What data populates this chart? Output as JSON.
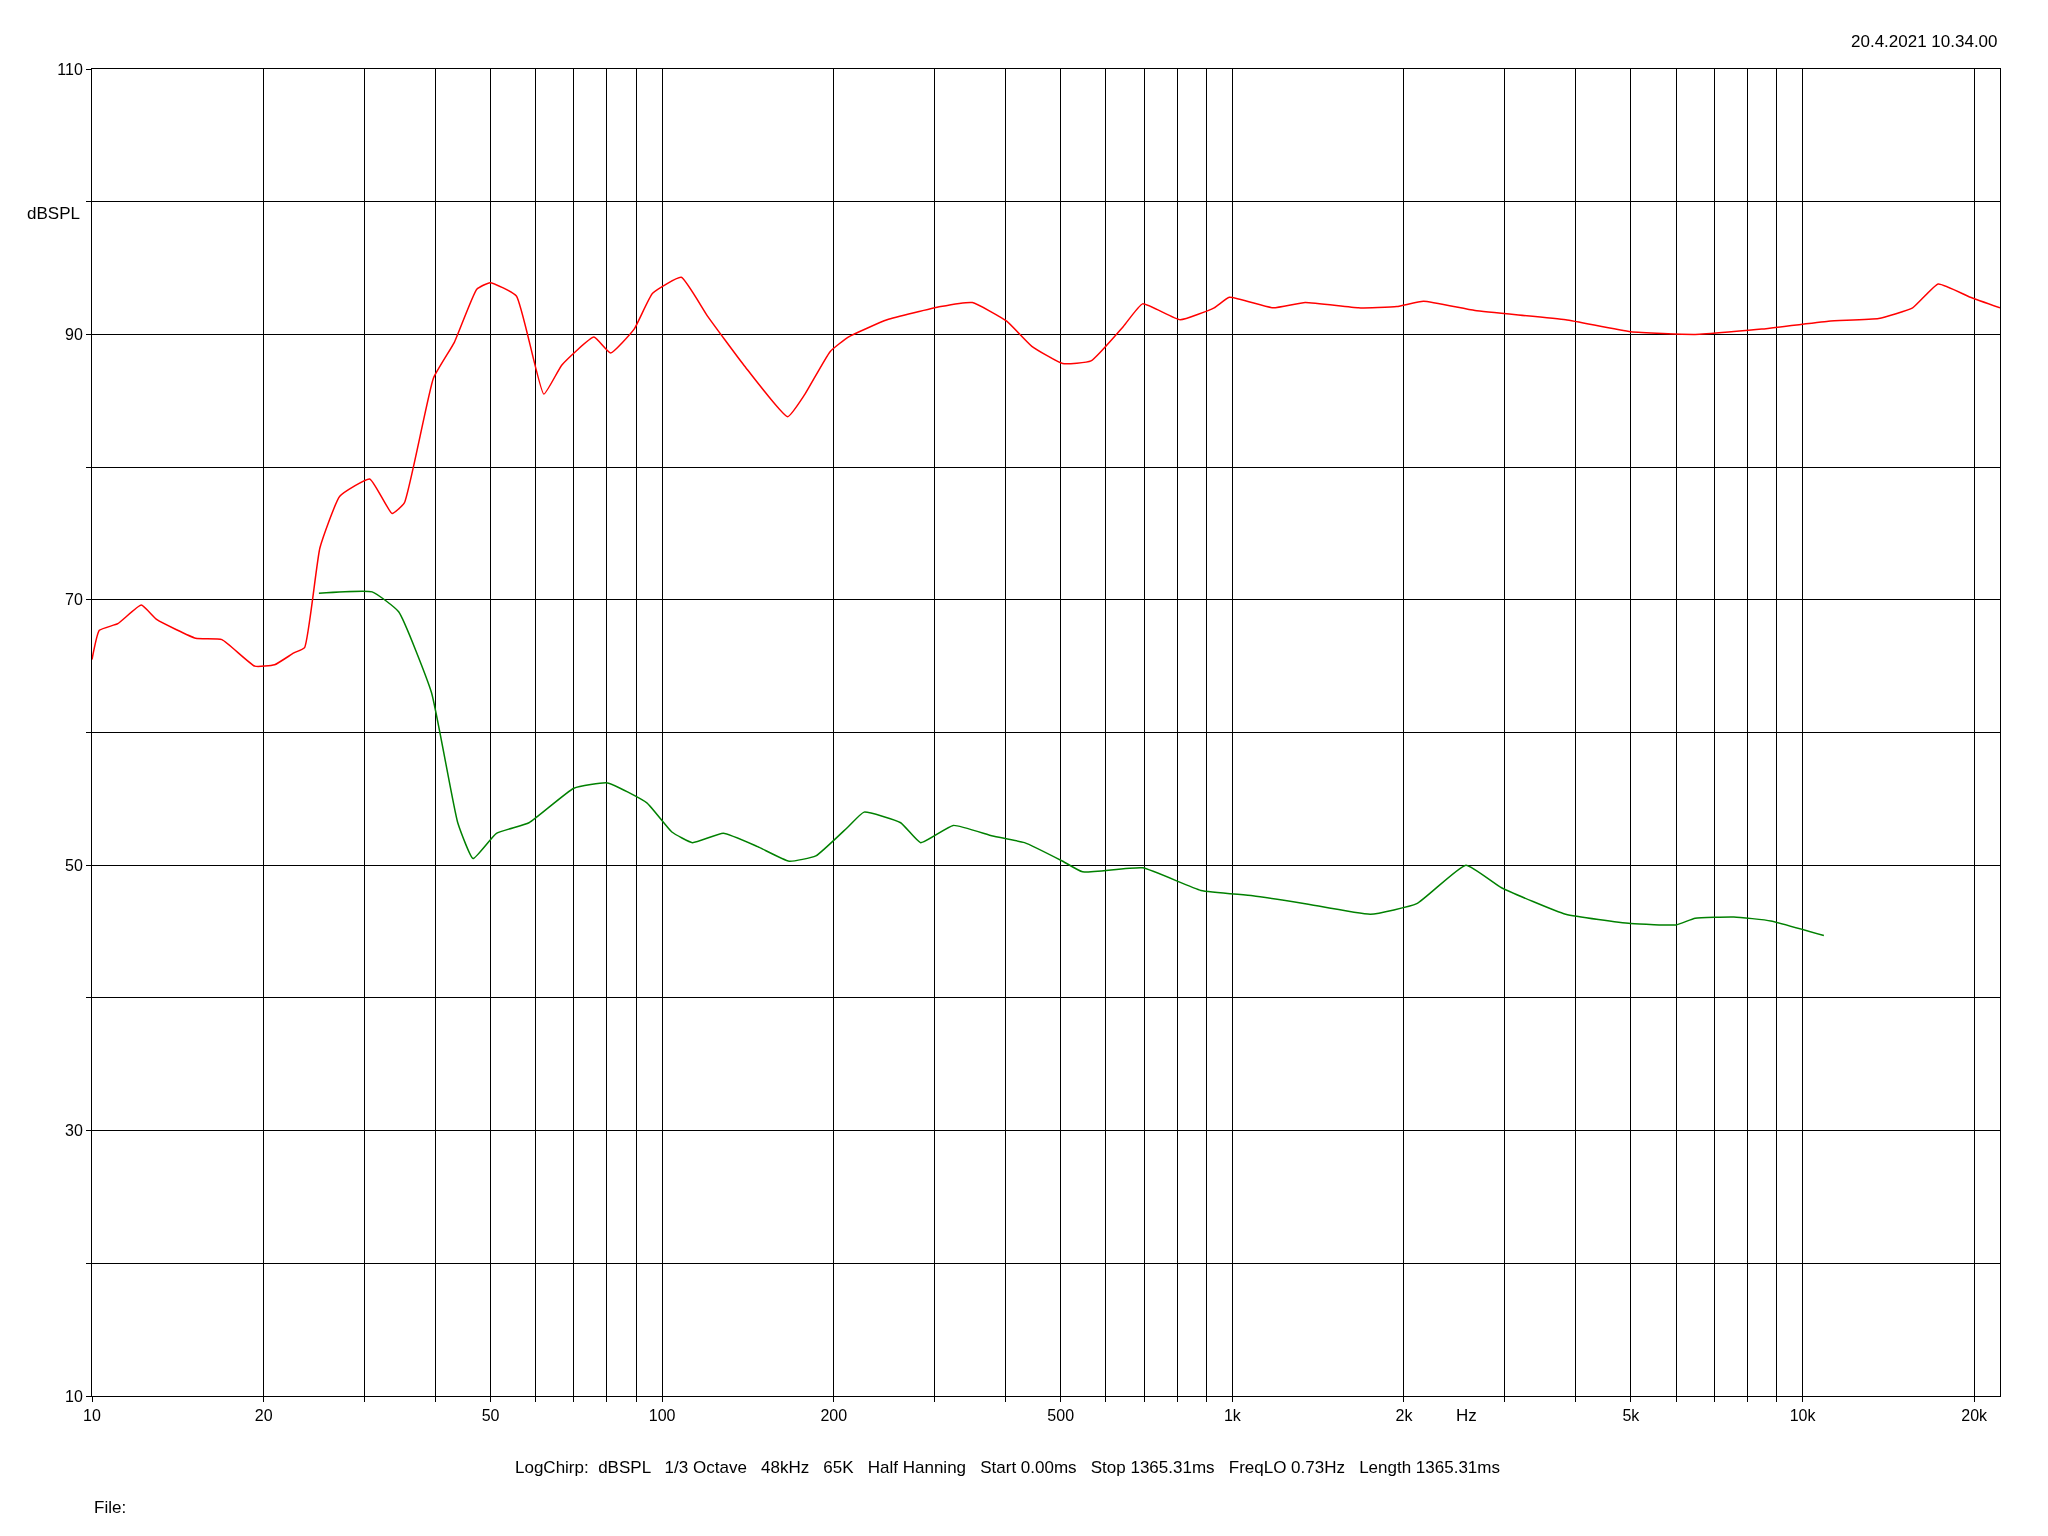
{
  "chart_data": {
    "type": "line",
    "xlabel": "Hz",
    "ylabel": "dBSPL",
    "log": "x",
    "grid": true,
    "marker": "none",
    "line_style": "solid",
    "xlim": [
      10,
      22200
    ],
    "ylim": [
      10,
      110
    ],
    "xticks": [
      10,
      20,
      {
        "value": 30,
        "label": null
      },
      {
        "value": 40,
        "label": null
      },
      50,
      {
        "value": 60,
        "label": null
      },
      {
        "value": 70,
        "label": null
      },
      {
        "value": 80,
        "label": null
      },
      {
        "value": 90,
        "label": null
      },
      100,
      200,
      {
        "value": 300,
        "label": null
      },
      {
        "value": 400,
        "label": null
      },
      500,
      {
        "value": 600,
        "label": null
      },
      {
        "value": 700,
        "label": null
      },
      {
        "value": 800,
        "label": null
      },
      {
        "value": 900,
        "label": null
      },
      {
        "value": 1000,
        "label": "1k"
      },
      {
        "value": 2000,
        "label": "2k"
      },
      {
        "value": 3000,
        "label": null
      },
      {
        "value": 4000,
        "label": null
      },
      {
        "value": 5000,
        "label": "5k"
      },
      {
        "value": 6000,
        "label": null
      },
      {
        "value": 7000,
        "label": null
      },
      {
        "value": 8000,
        "label": null
      },
      {
        "value": 9000,
        "label": null
      },
      {
        "value": 10000,
        "label": "10k"
      },
      {
        "value": 20000,
        "label": "20k"
      }
    ],
    "yticks": [
      10,
      {
        "value": 20,
        "label": null
      },
      30,
      {
        "value": 40,
        "label": null
      },
      50,
      {
        "value": 60,
        "label": null
      },
      70,
      {
        "value": 80,
        "label": null
      },
      90,
      {
        "value": 100,
        "label": null
      },
      110
    ],
    "annotations": [
      "20.4.2021 10.34.00",
      "LogChirp:  dBSPL   1/3 Octave   48kHz   65K   Half Hanning   Start 0.00ms   Stop 1365.31ms   FreqLO 0.73Hz   Length 1365.31ms",
      "File:"
    ],
    "series": [
      {
        "color": "#ff0000",
        "x": [
          10,
          10.3,
          11.1,
          12.2,
          13.0,
          15.2,
          16.9,
          19.3,
          20.9,
          22.6,
          23.6,
          25.1,
          27.2,
          30.7,
          33.6,
          35.3,
          39.7,
          43.2,
          47.3,
          49.9,
          55.5,
          62.0,
          66.7,
          75.9,
          81.2,
          89.3,
          96.2,
          108,
          120,
          139,
          166,
          178,
          197,
          212,
          248,
          308,
          350,
          402,
          445,
          504,
          565,
          644,
          696,
          810,
          929,
          988,
          1179,
          1342,
          1664,
          1943,
          2164,
          2665,
          3843,
          4996,
          6482,
          8485,
          11100,
          13600,
          15600,
          17300,
          19700,
          22200
        ],
        "values": [
          65.5,
          67.7,
          68.2,
          69.6,
          68.5,
          67.1,
          67.0,
          65.0,
          65.1,
          66.0,
          66.4,
          73.9,
          77.8,
          79.1,
          76.5,
          77.3,
          86.7,
          89.4,
          93.4,
          93.9,
          92.9,
          85.5,
          87.7,
          89.8,
          88.6,
          90.4,
          93.1,
          94.3,
          91.4,
          87.7,
          83.8,
          85.5,
          88.7,
          89.8,
          91.1,
          92.1,
          92.4,
          91.0,
          89.1,
          87.8,
          88.0,
          90.6,
          92.3,
          91.1,
          92.0,
          92.8,
          92.0,
          92.4,
          92.0,
          92.1,
          92.5,
          91.8,
          91.1,
          90.2,
          90.0,
          90.4,
          91.0,
          91.2,
          92.0,
          93.8,
          92.8,
          92.0
        ]
      },
      {
        "color": "#008000",
        "x": [
          25,
          31,
          34.5,
          39.4,
          43.8,
          46.6,
          51.2,
          58.4,
          70,
          80.2,
          94.0,
          104,
          113,
          128,
          147,
          167,
          186,
          212,
          226,
          262,
          284,
          324,
          380,
          432,
          504,
          546,
          696,
          881,
          1086,
          1342,
          1747,
          2106,
          2568,
          2965,
          3843,
          4996,
          6000,
          6482,
          7580,
          8800,
          10900
        ],
        "values": [
          70.5,
          70.6,
          69.1,
          63.0,
          53.2,
          50.5,
          52.4,
          53.2,
          55.8,
          56.2,
          54.7,
          52.5,
          51.7,
          52.4,
          51.4,
          50.3,
          50.7,
          52.9,
          54.0,
          53.2,
          51.7,
          53.0,
          52.2,
          51.7,
          50.3,
          49.5,
          49.8,
          48.1,
          47.7,
          47.1,
          46.3,
          47.1,
          50.0,
          48.3,
          46.3,
          45.6,
          45.5,
          46.0,
          46.1,
          45.8,
          44.7
        ]
      }
    ]
  }
}
